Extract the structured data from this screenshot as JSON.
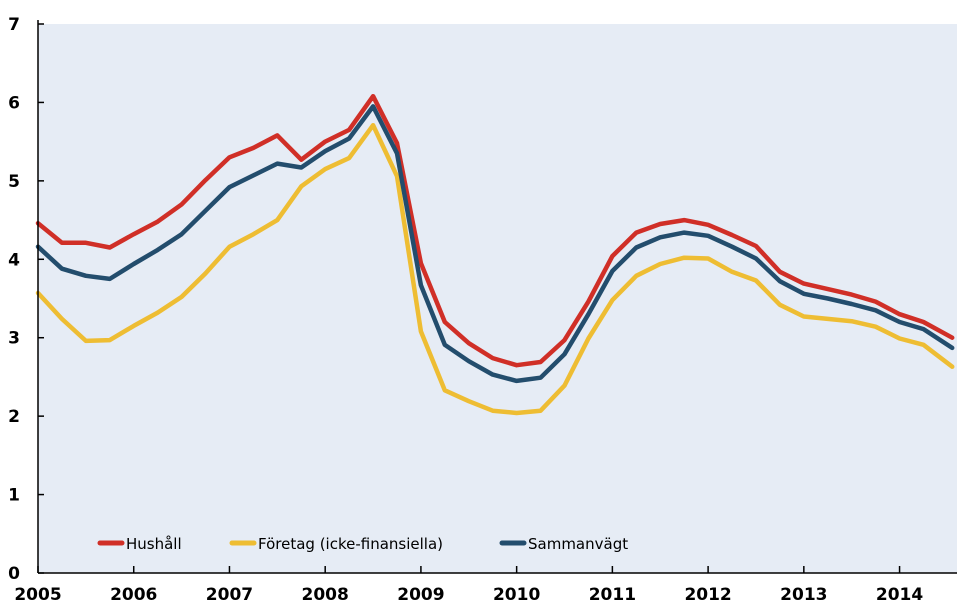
{
  "chart_data": {
    "type": "line",
    "xlim": [
      2005,
      2014.6
    ],
    "ylim": [
      0,
      7
    ],
    "x_ticks": [
      2005,
      2006,
      2007,
      2008,
      2009,
      2010,
      2011,
      2012,
      2013,
      2014
    ],
    "y_ticks": [
      0,
      1,
      2,
      3,
      4,
      5,
      6,
      7
    ],
    "x_tick_labels": [
      "2005",
      "2006",
      "2007",
      "2008",
      "2009",
      "2010",
      "2011",
      "2012",
      "2013",
      "2014"
    ],
    "y_tick_labels": [
      "0",
      "1",
      "2",
      "3",
      "4",
      "5",
      "6",
      "7"
    ],
    "grid": false,
    "background": "#e6ecf5",
    "legend_position": "bottom-inside",
    "x": [
      2005.0,
      2005.25,
      2005.5,
      2005.75,
      2006.0,
      2006.25,
      2006.5,
      2006.75,
      2007.0,
      2007.25,
      2007.5,
      2007.75,
      2008.0,
      2008.25,
      2008.5,
      2008.75,
      2009.0,
      2009.25,
      2009.5,
      2009.75,
      2010.0,
      2010.25,
      2010.5,
      2010.75,
      2011.0,
      2011.25,
      2011.5,
      2011.75,
      2012.0,
      2012.25,
      2012.5,
      2012.75,
      2013.0,
      2013.25,
      2013.5,
      2013.75,
      2014.0,
      2014.25,
      2014.55
    ],
    "series": [
      {
        "name": "Hushåll",
        "color": "#d02f27",
        "values": [
          4.46,
          4.21,
          4.21,
          4.15,
          4.32,
          4.48,
          4.7,
          5.01,
          5.3,
          5.42,
          5.58,
          5.27,
          5.5,
          5.65,
          6.08,
          5.48,
          3.95,
          3.2,
          2.93,
          2.74,
          2.65,
          2.69,
          2.97,
          3.46,
          4.04,
          4.34,
          4.45,
          4.5,
          4.44,
          4.31,
          4.17,
          3.84,
          3.69,
          3.62,
          3.55,
          3.46,
          3.3,
          3.2,
          3.0
        ]
      },
      {
        "name": "Företag (icke-finansiella)",
        "color": "#eebd33",
        "values": [
          3.57,
          3.24,
          2.96,
          2.97,
          3.15,
          3.32,
          3.52,
          3.82,
          4.16,
          4.32,
          4.5,
          4.93,
          5.15,
          5.29,
          5.71,
          5.06,
          3.08,
          2.33,
          2.19,
          2.07,
          2.04,
          2.07,
          2.39,
          2.99,
          3.48,
          3.79,
          3.94,
          4.02,
          4.01,
          3.84,
          3.73,
          3.42,
          3.27,
          3.24,
          3.21,
          3.14,
          2.99,
          2.91,
          2.63
        ]
      },
      {
        "name": "Sammanvägt",
        "color": "#234d6d",
        "values": [
          4.16,
          3.88,
          3.79,
          3.75,
          3.94,
          4.12,
          4.32,
          4.62,
          4.92,
          5.07,
          5.22,
          5.17,
          5.38,
          5.54,
          5.95,
          5.35,
          3.67,
          2.91,
          2.7,
          2.53,
          2.45,
          2.49,
          2.79,
          3.3,
          3.85,
          4.15,
          4.28,
          4.34,
          4.3,
          4.16,
          4.01,
          3.72,
          3.56,
          3.5,
          3.43,
          3.35,
          3.2,
          3.11,
          2.87
        ]
      }
    ]
  }
}
